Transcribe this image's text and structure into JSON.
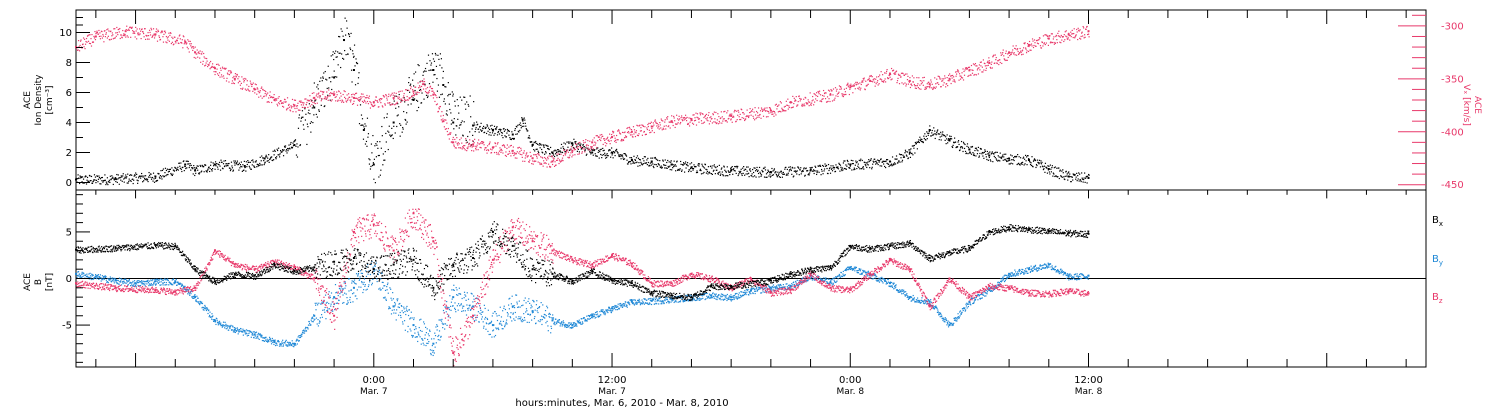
{
  "colors": {
    "black": "#000000",
    "pink": "#e8386a",
    "blue": "#1f88d6"
  },
  "xaxis": {
    "label": "hours:minutes, Mar.  6, 2010 - Mar.  8, 2010",
    "ticks": [
      {
        "time": "0:00",
        "date": "Mar. 7",
        "hours": 24
      },
      {
        "time": "12:00",
        "date": "Mar. 7",
        "hours": 36
      },
      {
        "time": "0:00",
        "date": "Mar. 8",
        "hours": 48
      },
      {
        "time": "12:00",
        "date": "Mar. 8",
        "hours": 60
      }
    ],
    "range_hours": [
      9,
      77
    ]
  },
  "chart_data": [
    {
      "type": "scatter",
      "panel": "top",
      "ylabel_left": [
        "ACE",
        "Ion Density",
        "[cm⁻³]"
      ],
      "ylabel_right": [
        "ACE",
        "Vₓ [km/s]"
      ],
      "ylim_left": [
        -0.5,
        11.5
      ],
      "yticks_left": [
        0,
        2,
        4,
        6,
        8,
        10
      ],
      "ylim_right": [
        -455,
        -285
      ],
      "yticks_right": [
        -450,
        -400,
        -350,
        -300
      ],
      "series": [
        {
          "axis": "left",
          "color": "#000000",
          "points": [
            [
              9,
              0.2
            ],
            [
              11,
              0.25
            ],
            [
              13,
              0.4
            ],
            [
              14.5,
              1.2
            ],
            [
              15,
              0.8
            ],
            [
              16,
              1.2
            ],
            [
              17.5,
              1.1
            ],
            [
              18.5,
              1.6
            ],
            [
              20,
              2.5
            ],
            [
              21,
              5
            ],
            [
              22,
              7
            ],
            [
              22.5,
              9.5
            ],
            [
              23,
              7.5
            ],
            [
              23.5,
              3.5
            ],
            [
              24,
              1.2
            ],
            [
              25,
              4
            ],
            [
              26,
              5.5
            ],
            [
              27,
              7.5
            ],
            [
              27.5,
              6.5
            ],
            [
              28,
              4
            ],
            [
              29,
              3.8
            ],
            [
              30,
              3.5
            ],
            [
              31,
              3.2
            ],
            [
              31.5,
              4.2
            ],
            [
              32,
              2.5
            ],
            [
              33,
              2
            ],
            [
              34,
              2.6
            ],
            [
              35,
              2
            ],
            [
              36,
              2
            ],
            [
              37,
              1.5
            ],
            [
              38,
              1.4
            ],
            [
              39,
              1.2
            ],
            [
              40,
              1
            ],
            [
              42,
              0.8
            ],
            [
              44,
              0.7
            ],
            [
              46,
              0.8
            ],
            [
              48,
              1.2
            ],
            [
              50,
              1.4
            ],
            [
              51,
              2
            ],
            [
              52,
              3.5
            ],
            [
              53,
              2.8
            ],
            [
              54,
              2.2
            ],
            [
              55,
              1.8
            ],
            [
              56,
              1.6
            ],
            [
              57,
              1.5
            ],
            [
              58,
              0.9
            ],
            [
              59,
              0.4
            ],
            [
              60,
              0.3
            ]
          ]
        },
        {
          "axis": "right",
          "color": "#e8386a",
          "points": [
            [
              9,
              -320
            ],
            [
              10,
              -310
            ],
            [
              11.5,
              -305
            ],
            [
              13,
              -308
            ],
            [
              14.5,
              -315
            ],
            [
              15,
              -325
            ],
            [
              16,
              -340
            ],
            [
              17,
              -350
            ],
            [
              18,
              -360
            ],
            [
              19,
              -370
            ],
            [
              20,
              -375
            ],
            [
              21,
              -368
            ],
            [
              22,
              -365
            ],
            [
              23,
              -368
            ],
            [
              24,
              -372
            ],
            [
              25,
              -368
            ],
            [
              26,
              -362
            ],
            [
              26.5,
              -355
            ],
            [
              27,
              -365
            ],
            [
              27.5,
              -390
            ],
            [
              28,
              -410
            ],
            [
              29,
              -412
            ],
            [
              30,
              -415
            ],
            [
              31,
              -418
            ],
            [
              32,
              -425
            ],
            [
              33,
              -428
            ],
            [
              34,
              -418
            ],
            [
              35,
              -410
            ],
            [
              36,
              -405
            ],
            [
              37,
              -400
            ],
            [
              38,
              -395
            ],
            [
              39,
              -390
            ],
            [
              40,
              -388
            ],
            [
              42,
              -385
            ],
            [
              44,
              -380
            ],
            [
              45,
              -372
            ],
            [
              47,
              -365
            ],
            [
              48,
              -358
            ],
            [
              49,
              -352
            ],
            [
              50,
              -345
            ],
            [
              51,
              -352
            ],
            [
              52,
              -355
            ],
            [
              53,
              -350
            ],
            [
              54,
              -342
            ],
            [
              55,
              -335
            ],
            [
              56,
              -325
            ],
            [
              57,
              -318
            ],
            [
              58,
              -312
            ],
            [
              59,
              -308
            ],
            [
              60,
              -305
            ]
          ]
        }
      ]
    },
    {
      "type": "scatter",
      "panel": "bottom",
      "ylabel_left": [
        "ACE",
        "B",
        "[nT]"
      ],
      "ylim": [
        -9.5,
        9.5
      ],
      "yticks": [
        -5,
        0,
        5
      ],
      "series": [
        {
          "name": "Bx",
          "color": "#000000",
          "points": [
            [
              9,
              3.1
            ],
            [
              11,
              3.3
            ],
            [
              13,
              3.6
            ],
            [
              14,
              3.5
            ],
            [
              15,
              1
            ],
            [
              16,
              -0.3
            ],
            [
              17,
              0.5
            ],
            [
              18,
              0.3
            ],
            [
              19,
              1.5
            ],
            [
              20,
              0.8
            ],
            [
              21,
              1.2
            ],
            [
              22,
              1.8
            ],
            [
              23,
              2.2
            ],
            [
              24,
              1
            ],
            [
              25,
              1.5
            ],
            [
              26,
              2
            ],
            [
              27,
              -1
            ],
            [
              28,
              1.5
            ],
            [
              29,
              2.2
            ],
            [
              30,
              5
            ],
            [
              31,
              3.5
            ],
            [
              32,
              1
            ],
            [
              33,
              0.5
            ],
            [
              34,
              -0.3
            ],
            [
              35,
              0.8
            ],
            [
              36,
              -0.2
            ],
            [
              37,
              -0.5
            ],
            [
              38,
              -1.5
            ],
            [
              39,
              -1.8
            ],
            [
              40,
              -2
            ],
            [
              41,
              -0.8
            ],
            [
              42,
              -0.8
            ],
            [
              44,
              -0.2
            ],
            [
              45,
              0.5
            ],
            [
              46,
              1
            ],
            [
              47,
              1.2
            ],
            [
              48,
              3.5
            ],
            [
              49,
              3.2
            ],
            [
              50,
              3.5
            ],
            [
              51,
              3.8
            ],
            [
              52,
              2.2
            ],
            [
              53,
              2.8
            ],
            [
              54,
              3.3
            ],
            [
              55,
              5
            ],
            [
              56,
              5.5
            ],
            [
              57,
              5.3
            ],
            [
              58,
              5.1
            ],
            [
              59,
              4.9
            ],
            [
              60,
              4.8
            ]
          ]
        },
        {
          "name": "By",
          "color": "#1f88d6",
          "points": [
            [
              9,
              0.5
            ],
            [
              10,
              0.2
            ],
            [
              11,
              -0.2
            ],
            [
              12,
              -0.5
            ],
            [
              13,
              -0.3
            ],
            [
              14,
              -0.3
            ],
            [
              15,
              -2
            ],
            [
              16,
              -4.5
            ],
            [
              17,
              -5.5
            ],
            [
              18,
              -6
            ],
            [
              19,
              -6.8
            ],
            [
              20,
              -7
            ],
            [
              21,
              -4
            ],
            [
              22,
              -2
            ],
            [
              23,
              -1
            ],
            [
              24,
              1
            ],
            [
              25,
              -3
            ],
            [
              26,
              -5
            ],
            [
              27,
              -7
            ],
            [
              28,
              -2
            ],
            [
              29,
              -3
            ],
            [
              30,
              -5
            ],
            [
              31,
              -3
            ],
            [
              32,
              -3.5
            ],
            [
              33,
              -4.5
            ],
            [
              34,
              -5
            ],
            [
              35,
              -4
            ],
            [
              36,
              -3.2
            ],
            [
              37,
              -2.5
            ],
            [
              38,
              -2.4
            ],
            [
              39,
              -2.2
            ],
            [
              40,
              -2
            ],
            [
              41,
              -1.8
            ],
            [
              42,
              -2
            ],
            [
              43,
              -1.3
            ],
            [
              44,
              -1
            ],
            [
              45,
              -0.8
            ],
            [
              46,
              0.3
            ],
            [
              47,
              -0.4
            ],
            [
              48,
              1.2
            ],
            [
              49,
              0.4
            ],
            [
              50,
              -0.5
            ],
            [
              51,
              -2
            ],
            [
              52,
              -2.5
            ],
            [
              53,
              -5
            ],
            [
              54,
              -2.5
            ],
            [
              55,
              -1.2
            ],
            [
              56,
              0.5
            ],
            [
              57,
              1
            ],
            [
              58,
              1.5
            ],
            [
              59,
              0.2
            ],
            [
              60,
              0.3
            ]
          ]
        },
        {
          "name": "Bz",
          "color": "#e8386a",
          "points": [
            [
              9,
              -0.5
            ],
            [
              11,
              -1
            ],
            [
              13,
              -1.2
            ],
            [
              14,
              -1.4
            ],
            [
              15,
              -1
            ],
            [
              16,
              3
            ],
            [
              17,
              1.5
            ],
            [
              18,
              1
            ],
            [
              19,
              1.8
            ],
            [
              20,
              1.2
            ],
            [
              21,
              0
            ],
            [
              22,
              -4
            ],
            [
              23,
              5
            ],
            [
              24,
              5.8
            ],
            [
              25,
              3
            ],
            [
              26,
              7
            ],
            [
              27,
              4
            ],
            [
              28,
              -8
            ],
            [
              29,
              -4
            ],
            [
              30,
              2
            ],
            [
              31,
              5.5
            ],
            [
              32,
              4
            ],
            [
              33,
              3
            ],
            [
              34,
              2
            ],
            [
              35,
              1.5
            ],
            [
              36,
              2.5
            ],
            [
              37,
              1.6
            ],
            [
              38,
              -0.5
            ],
            [
              39,
              -0.5
            ],
            [
              40,
              0.5
            ],
            [
              41,
              0
            ],
            [
              42,
              -1
            ],
            [
              43,
              0
            ],
            [
              44,
              -1.5
            ],
            [
              45,
              -1.2
            ],
            [
              46,
              0.5
            ],
            [
              47,
              -1
            ],
            [
              48,
              -1.2
            ],
            [
              49,
              0.5
            ],
            [
              50,
              2
            ],
            [
              51,
              1
            ],
            [
              52,
              -3
            ],
            [
              53,
              0
            ],
            [
              54,
              -2
            ],
            [
              55,
              -0.8
            ],
            [
              56,
              -1
            ],
            [
              57,
              -1.5
            ],
            [
              58,
              -1.6
            ],
            [
              59,
              -1.3
            ],
            [
              60,
              -1.6
            ]
          ]
        }
      ],
      "legend": [
        {
          "label": "B",
          "sub": "x",
          "color": "#000000"
        },
        {
          "label": "B",
          "sub": "y",
          "color": "#1f88d6"
        },
        {
          "label": "B",
          "sub": "z",
          "color": "#e8386a"
        }
      ]
    }
  ]
}
